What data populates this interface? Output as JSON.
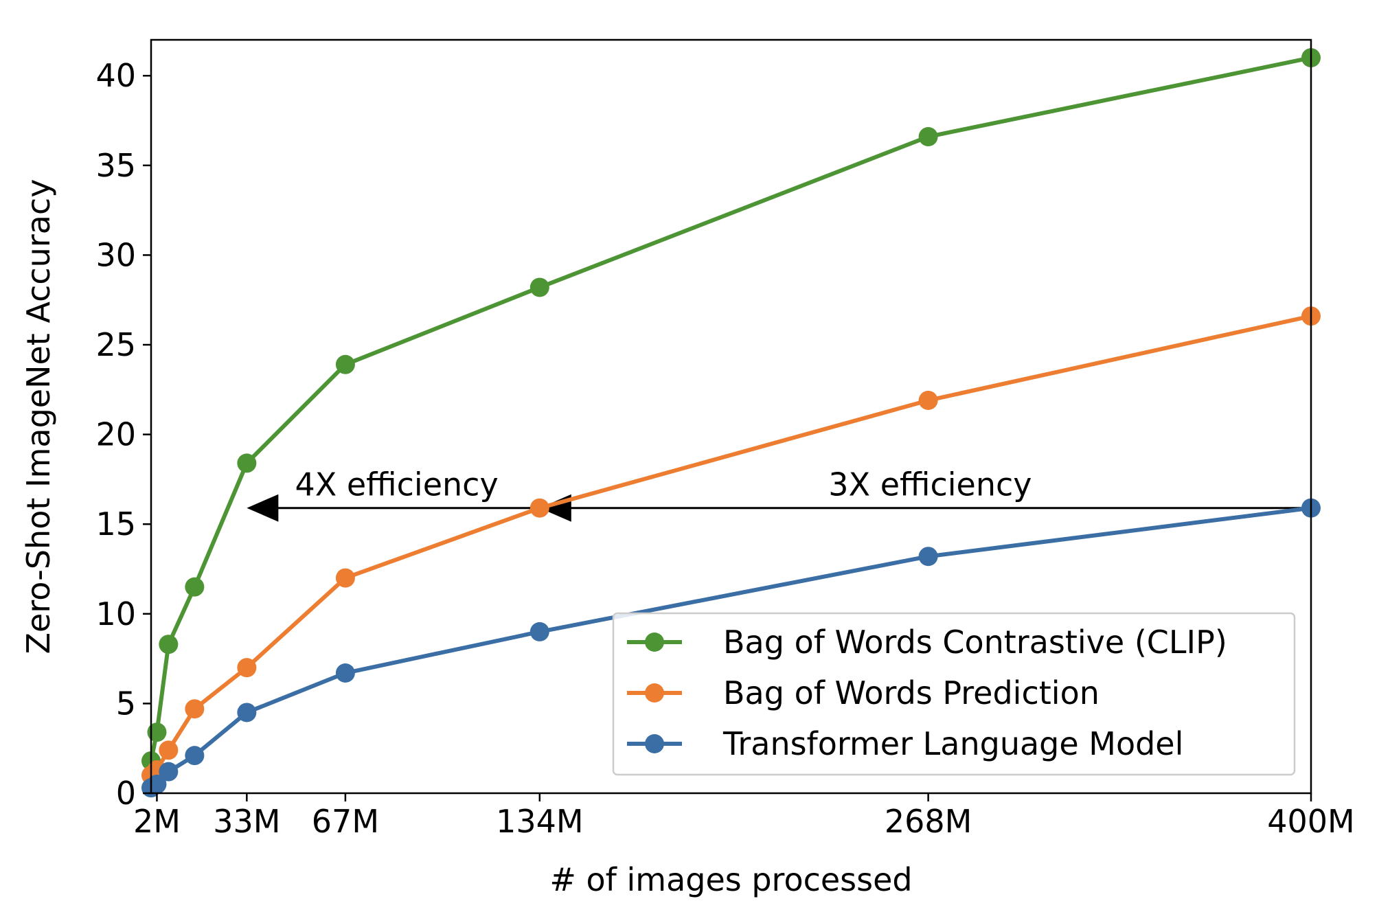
{
  "chart_data": {
    "type": "line",
    "title": "",
    "xlabel": "# of images processed",
    "ylabel": "Zero-Shot ImageNet Accuracy",
    "xlim": [
      0,
      400
    ],
    "ylim": [
      0,
      42
    ],
    "x_unit": "M",
    "x_ticks": [
      {
        "value": 2,
        "label": "2M"
      },
      {
        "value": 33,
        "label": "33M"
      },
      {
        "value": 67,
        "label": "67M"
      },
      {
        "value": 134,
        "label": "134M"
      },
      {
        "value": 268,
        "label": "268M"
      },
      {
        "value": 400,
        "label": "400M"
      }
    ],
    "y_ticks": [
      0,
      5,
      10,
      15,
      20,
      25,
      30,
      35,
      40
    ],
    "grid": false,
    "legend_position": "bottom-right",
    "series": [
      {
        "name": "Bag of Words Contrastive (CLIP)",
        "color": "#4c9434",
        "x": [
          0,
          2,
          6,
          15,
          33,
          67,
          134,
          268,
          400
        ],
        "y": [
          1.8,
          3.4,
          8.3,
          11.5,
          18.4,
          23.9,
          28.2,
          36.6,
          41.0
        ]
      },
      {
        "name": "Bag of Words Prediction",
        "color": "#ed7d31",
        "x": [
          0,
          2,
          6,
          15,
          33,
          67,
          134,
          268,
          400
        ],
        "y": [
          1.0,
          1.3,
          2.4,
          4.7,
          7.0,
          12.0,
          15.9,
          21.9,
          26.6
        ]
      },
      {
        "name": "Transformer Language Model",
        "color": "#3a6ea5",
        "x": [
          0,
          2,
          6,
          15,
          33,
          67,
          134,
          268,
          400
        ],
        "y": [
          0.3,
          0.5,
          1.2,
          2.1,
          4.5,
          6.7,
          9.0,
          13.2,
          15.9
        ]
      }
    ],
    "annotations": [
      {
        "text": "4X efficiency",
        "arrow_from_x": 134,
        "arrow_to_x": 33,
        "y": 15.9
      },
      {
        "text": "3X efficiency",
        "arrow_from_x": 400,
        "arrow_to_x": 134,
        "y": 15.9
      }
    ]
  }
}
